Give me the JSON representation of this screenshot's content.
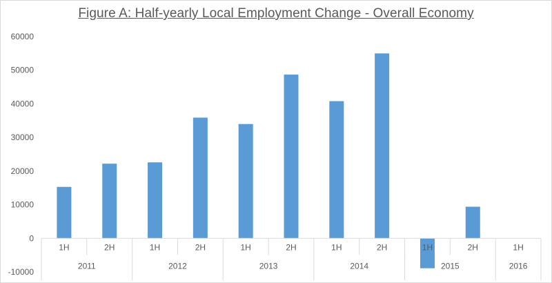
{
  "chart_data": {
    "type": "bar",
    "title": "Figure A: Half-yearly Local Employment Change - Overall Economy",
    "xlabel": "",
    "ylabel": "",
    "ylim": [
      -10000,
      60000
    ],
    "yticks": [
      "-10000",
      "0",
      "10000",
      "20000",
      "30000",
      "40000",
      "50000",
      "60000"
    ],
    "grid": false,
    "legend": "none",
    "bar_color": "#5b9bd5",
    "categories": [
      {
        "half": "1H",
        "year": "2011"
      },
      {
        "half": "2H",
        "year": "2011"
      },
      {
        "half": "1H",
        "year": "2012"
      },
      {
        "half": "2H",
        "year": "2012"
      },
      {
        "half": "1H",
        "year": "2013"
      },
      {
        "half": "2H",
        "year": "2013"
      },
      {
        "half": "1H",
        "year": "2014"
      },
      {
        "half": "2H",
        "year": "2014"
      },
      {
        "half": "1H",
        "year": "2015"
      },
      {
        "half": "2H",
        "year": "2015"
      },
      {
        "half": "1H",
        "year": "2016"
      }
    ],
    "values": [
      15300,
      22200,
      22600,
      35900,
      34000,
      48700,
      40800,
      55000,
      -8900,
      9400,
      0
    ],
    "years": [
      "2011",
      "2012",
      "2013",
      "2014",
      "2015",
      "2016"
    ]
  }
}
